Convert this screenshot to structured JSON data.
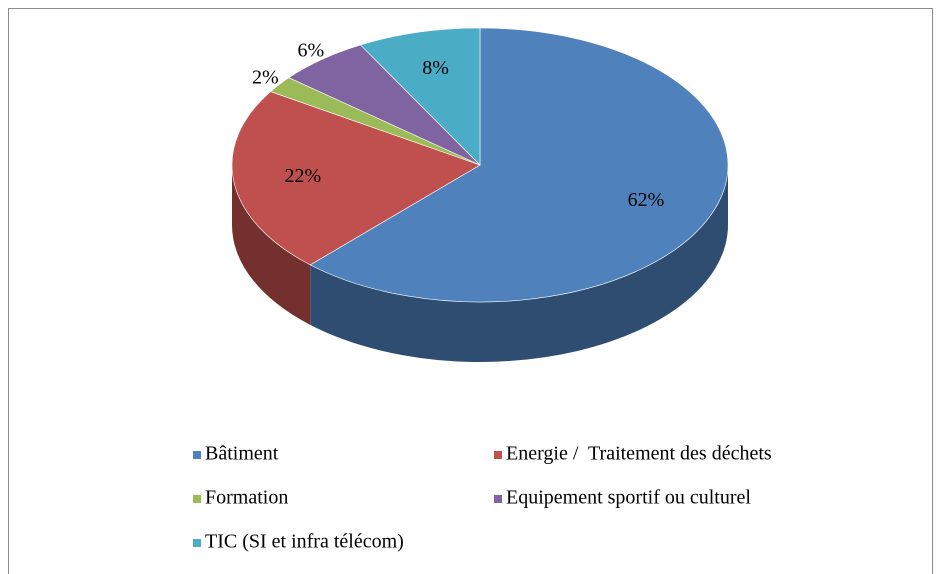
{
  "chart_data": {
    "type": "pie",
    "categories": [
      "Bâtiment",
      "Energie /  Traitement des déchets",
      "Formation",
      "Equipement sportif ou culturel",
      "TIC (SI et infra télécom)"
    ],
    "values": [
      62,
      22,
      2,
      6,
      8
    ],
    "value_labels": [
      "62%",
      "22%",
      "2%",
      "6%",
      "8%"
    ],
    "colors": [
      "#4f81bd",
      "#c0504d",
      "#9bbb59",
      "#8064a2",
      "#4bacc6"
    ],
    "legend": "bottom"
  }
}
